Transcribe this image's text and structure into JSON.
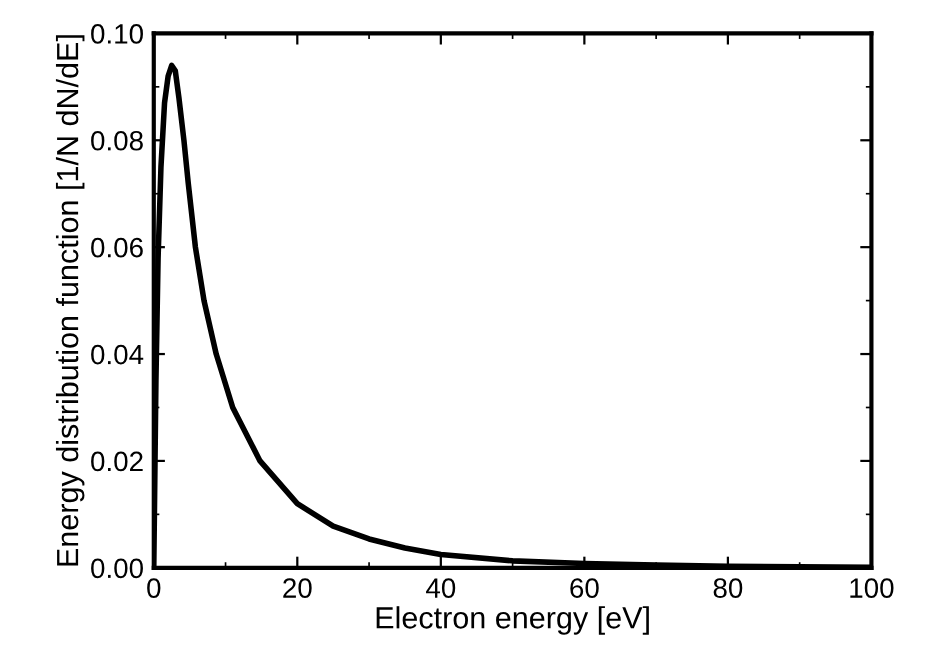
{
  "chart_data": {
    "type": "line",
    "xlabel": "Electron energy [eV]",
    "ylabel": "Energy distribution function [1/N dN/dE]",
    "x": [
      0,
      0.3,
      0.6,
      1,
      1.5,
      2,
      2.5,
      3,
      3.5,
      4.2,
      4.8,
      5.8,
      7,
      8.7,
      11,
      14.8,
      20,
      25,
      30,
      35,
      40,
      50,
      60,
      70,
      80,
      90,
      100
    ],
    "series": [
      {
        "color": "#000000",
        "values": [
          0,
          0.035,
          0.058,
          0.075,
          0.087,
          0.092,
          0.094,
          0.093,
          0.088,
          0.08,
          0.072,
          0.06,
          0.05,
          0.04,
          0.03,
          0.02,
          0.012,
          0.0078,
          0.0054,
          0.0037,
          0.0025,
          0.0013,
          0.0008,
          0.0005,
          0.0003,
          0.0002,
          0.00012
        ]
      }
    ],
    "xlim": [
      0,
      100
    ],
    "xticks": [
      0,
      20,
      40,
      60,
      80,
      100
    ],
    "ylim": [
      0,
      0.1
    ],
    "yticks": [
      {
        "value": 0,
        "label": "0.00"
      },
      {
        "value": 0.02,
        "label": "0.02"
      },
      {
        "value": 0.04,
        "label": "0.04"
      },
      {
        "value": 0.06,
        "label": "0.06"
      },
      {
        "value": 0.08,
        "label": "0.08"
      },
      {
        "value": 0.1,
        "label": "0.10"
      }
    ],
    "grid": false,
    "legend": false,
    "marker": "none",
    "line_style": "solid"
  }
}
